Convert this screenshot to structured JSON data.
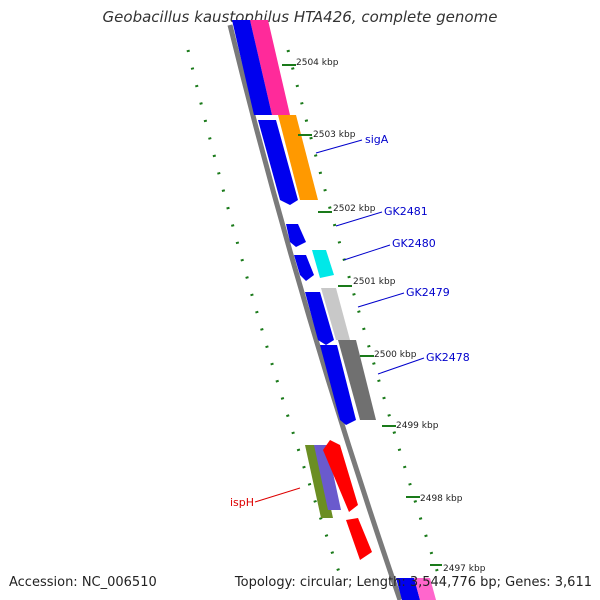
{
  "title": "Geobacillus kaustophilus HTA426, complete genome",
  "footer": {
    "accession": "Accession: NC_006510",
    "summary": "Topology: circular; Length: 3,544,776 bp; Genes: 3,611"
  },
  "colors": {
    "backbone": "#808080",
    "ticks": "#1a7a1a",
    "forward_gene": "#0000ee",
    "label_blue": "#0000cc",
    "label_red": "#dd0000"
  },
  "kbp_labels": [
    "2504 kbp",
    "2503 kbp",
    "2502 kbp",
    "2501 kbp",
    "2500 kbp",
    "2499 kbp",
    "2498 kbp",
    "2497 kbp"
  ],
  "gene_labels": [
    {
      "text": "sigA",
      "color": "#0000cc"
    },
    {
      "text": "GK2481",
      "color": "#0000cc"
    },
    {
      "text": "GK2480",
      "color": "#0000cc"
    },
    {
      "text": "GK2479",
      "color": "#0000cc"
    },
    {
      "text": "GK2478",
      "color": "#0000cc"
    },
    {
      "text": "ispH",
      "color": "#dd0000"
    }
  ]
}
